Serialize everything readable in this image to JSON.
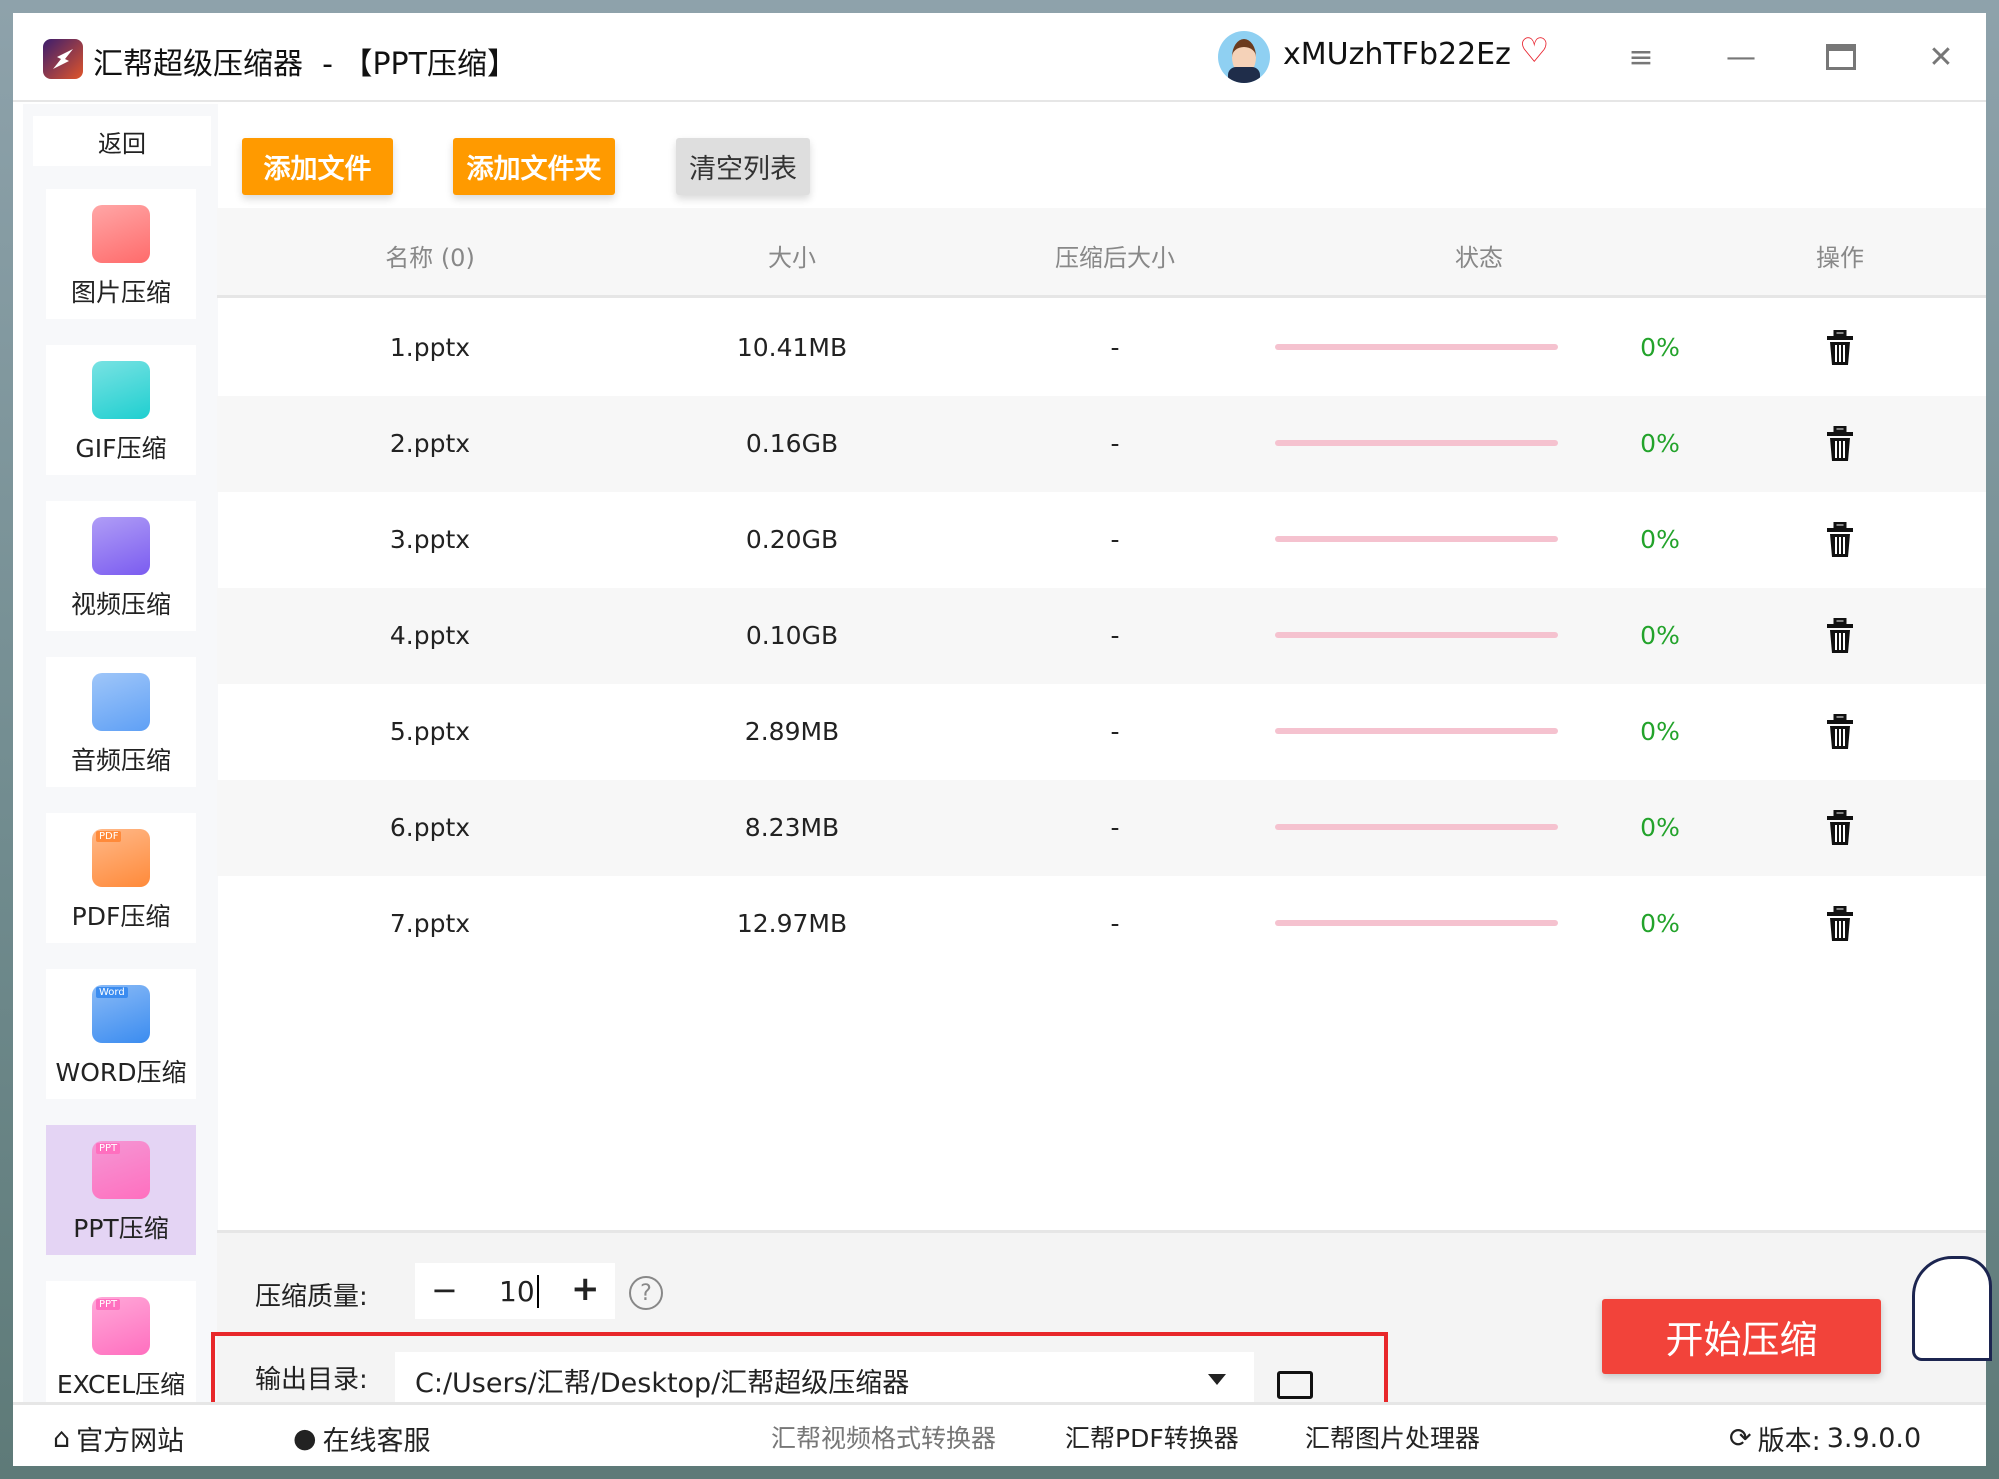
{
  "window": {
    "app_name": "汇帮超级压缩器",
    "separator": "-",
    "mode": "【PPT压缩】",
    "username": "xMUzhTFb22Ez"
  },
  "sidebar": {
    "back": "返回",
    "items": [
      {
        "label": "图片压缩",
        "icon": "image-icon",
        "color": "#ff6b6b"
      },
      {
        "label": "GIF压缩",
        "icon": "gif-icon",
        "color": "#1fcfd0"
      },
      {
        "label": "视频压缩",
        "icon": "video-icon",
        "color": "#7b5cf0"
      },
      {
        "label": "音频压缩",
        "icon": "audio-icon",
        "color": "#5fa0f5"
      },
      {
        "label": "PDF压缩",
        "icon": "pdf-icon",
        "color": "#ff8a3a",
        "tag": "PDF"
      },
      {
        "label": "WORD压缩",
        "icon": "word-icon",
        "color": "#3b8cf0",
        "tag": "Word"
      },
      {
        "label": "PPT压缩",
        "icon": "ppt-icon",
        "color": "#ff6fbf",
        "tag": "PPT",
        "active": true
      },
      {
        "label": "EXCEL压缩",
        "icon": "excel-icon",
        "color": "#ff6fbf",
        "tag": "PPT"
      }
    ]
  },
  "toolbar": {
    "add_file": "添加文件",
    "add_folder": "添加文件夹",
    "clear": "清空列表"
  },
  "table": {
    "headers": [
      "名称 (0)",
      "大小",
      "压缩后大小",
      "状态",
      "操作"
    ],
    "rows": [
      {
        "name": "1.pptx",
        "size": "10.41MB",
        "compressed": "-",
        "progress": 0,
        "percent": "0%"
      },
      {
        "name": "2.pptx",
        "size": "0.16GB",
        "compressed": "-",
        "progress": 0,
        "percent": "0%"
      },
      {
        "name": "3.pptx",
        "size": "0.20GB",
        "compressed": "-",
        "progress": 0,
        "percent": "0%"
      },
      {
        "name": "4.pptx",
        "size": "0.10GB",
        "compressed": "-",
        "progress": 0,
        "percent": "0%"
      },
      {
        "name": "5.pptx",
        "size": "2.89MB",
        "compressed": "-",
        "progress": 0,
        "percent": "0%"
      },
      {
        "name": "6.pptx",
        "size": "8.23MB",
        "compressed": "-",
        "progress": 0,
        "percent": "0%"
      },
      {
        "name": "7.pptx",
        "size": "12.97MB",
        "compressed": "-",
        "progress": 0,
        "percent": "0%"
      }
    ]
  },
  "settings": {
    "quality_label": "压缩质量:",
    "quality_minus": "−",
    "quality_value": "10",
    "quality_plus": "+",
    "help": "?",
    "output_label": "输出目录:",
    "output_path": "C:/Users/汇帮/Desktop/汇帮超级压缩器",
    "start": "开始压缩"
  },
  "footer": {
    "website": "官方网站",
    "support": "在线客服",
    "link1": "汇帮视频格式转换器",
    "link2": "汇帮PDF转换器",
    "link3": "汇帮图片处理器",
    "version_label": "版本:",
    "version": "3.9.0.0"
  },
  "colors": {
    "accent": "#ff9a00",
    "start": "#f2433a",
    "percent": "#23a32b",
    "progress_track": "#f5c2cf",
    "highlight_box": "#e8272a"
  }
}
